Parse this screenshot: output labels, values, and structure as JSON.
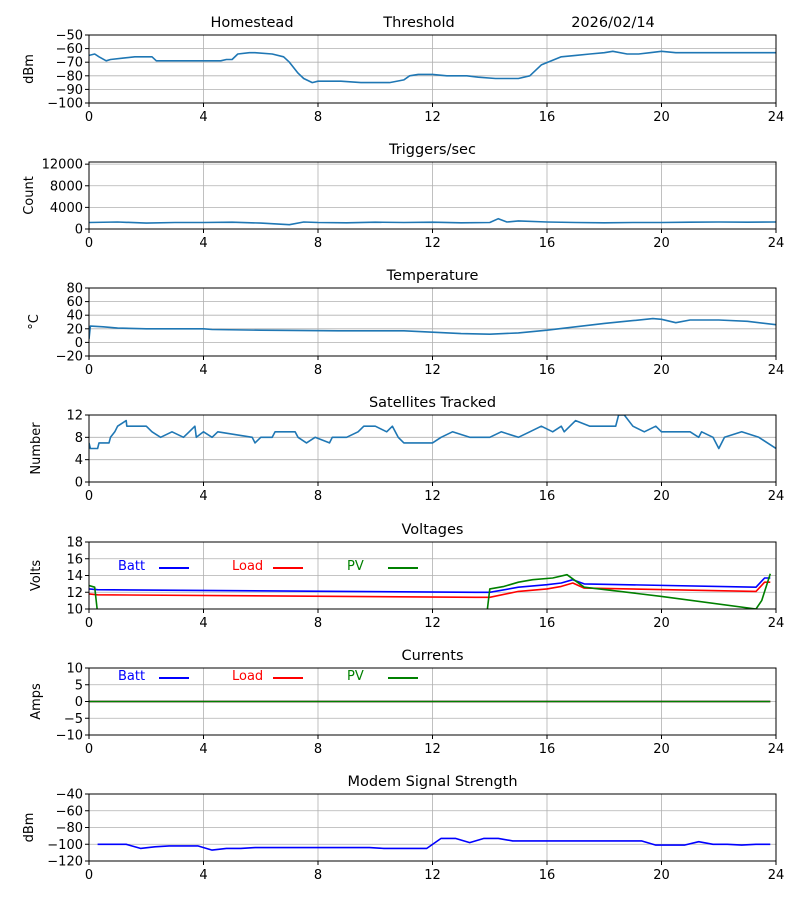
{
  "header": {
    "station": "Homestead",
    "mode": "Threshold",
    "date": "2026/02/14"
  },
  "colors": {
    "default_line": "#1f77b4",
    "batt": "#0000ff",
    "load": "#ff0000",
    "pv": "#008000",
    "grid": "#b0b0b0",
    "axis": "#000000"
  },
  "chart_data": [
    {
      "id": "signal",
      "type": "line",
      "title": "",
      "xlabel": "",
      "ylabel": "dBm",
      "xlim": [
        0,
        24
      ],
      "ylim": [
        -100,
        -50
      ],
      "xticks": [
        "0",
        "4",
        "8",
        "12",
        "16",
        "20",
        "24"
      ],
      "yticks": [
        "−50",
        "−60",
        "−70",
        "−80",
        "−90",
        "−100"
      ],
      "ytick_values": [
        -50,
        -60,
        -70,
        -80,
        -90,
        -100
      ],
      "grid": true,
      "series": [
        {
          "name": "signal",
          "color": "#1f77b4",
          "x": [
            0,
            0.2,
            0.35,
            0.6,
            0.75,
            1.2,
            1.6,
            2.2,
            2.35,
            4.0,
            4.6,
            4.8,
            5.0,
            5.2,
            5.6,
            5.8,
            6.4,
            6.8,
            7.0,
            7.3,
            7.5,
            7.8,
            8.0,
            8.8,
            9.5,
            10.5,
            11.0,
            11.2,
            11.5,
            12.0,
            12.5,
            13.2,
            13.6,
            14.2,
            14.6,
            15.0,
            15.4,
            15.8,
            16.5,
            17.0,
            17.5,
            18.0,
            18.3,
            18.8,
            19.2,
            19.6,
            20.0,
            20.5,
            21.0,
            22.0,
            23.0,
            24.0
          ],
          "y": [
            -65,
            -64,
            -66,
            -69,
            -68,
            -67,
            -66,
            -66,
            -69,
            -69,
            -69,
            -68,
            -68,
            -64,
            -63,
            -63,
            -64,
            -66,
            -70,
            -78,
            -82,
            -85,
            -84,
            -84,
            -85,
            -85,
            -83,
            -80,
            -79,
            -79,
            -80,
            -80,
            -81,
            -82,
            -82,
            -82,
            -80,
            -72,
            -66,
            -65,
            -64,
            -63,
            -62,
            -64,
            -64,
            -63,
            -62,
            -63,
            -63,
            -63,
            -63,
            -63
          ]
        }
      ]
    },
    {
      "id": "triggers",
      "type": "line",
      "title": "Triggers/sec",
      "xlabel": "",
      "ylabel": "Count",
      "xlim": [
        0,
        24
      ],
      "ylim": [
        0,
        12400
      ],
      "xticks": [
        "0",
        "4",
        "8",
        "12",
        "16",
        "20",
        "24"
      ],
      "yticks": [
        "0",
        "4000",
        "8000",
        "12000"
      ],
      "ytick_values": [
        0,
        4000,
        8000,
        12000
      ],
      "grid": true,
      "series": [
        {
          "name": "triggers",
          "color": "#1f77b4",
          "x": [
            0,
            1,
            2,
            3,
            4,
            5,
            6,
            7,
            7.5,
            8,
            9,
            10,
            11,
            12,
            13,
            14,
            14.3,
            14.6,
            15,
            16,
            17,
            18,
            19,
            20,
            21,
            22,
            23,
            24
          ],
          "y": [
            1200,
            1300,
            1100,
            1200,
            1200,
            1250,
            1100,
            800,
            1300,
            1200,
            1150,
            1250,
            1200,
            1250,
            1150,
            1200,
            1900,
            1300,
            1500,
            1300,
            1200,
            1150,
            1200,
            1200,
            1250,
            1300,
            1250,
            1300
          ]
        }
      ]
    },
    {
      "id": "temperature",
      "type": "line",
      "title": "Temperature",
      "xlabel": "",
      "ylabel": "°C",
      "xlim": [
        0,
        24
      ],
      "ylim": [
        -20,
        80
      ],
      "xticks": [
        "0",
        "4",
        "8",
        "12",
        "16",
        "20",
        "24"
      ],
      "yticks": [
        "80",
        "60",
        "40",
        "20",
        "0",
        "−20"
      ],
      "ytick_values": [
        80,
        60,
        40,
        20,
        0,
        -20
      ],
      "grid": true,
      "series": [
        {
          "name": "temperature",
          "color": "#1f77b4",
          "x": [
            0,
            0.05,
            0.5,
            1,
            2,
            4,
            4.3,
            6,
            8.7,
            11,
            12,
            13,
            14,
            15,
            16,
            17,
            18,
            19,
            19.7,
            20.0,
            20.5,
            21,
            22,
            23,
            24
          ],
          "y": [
            5,
            24,
            23,
            21,
            20,
            20,
            19,
            18,
            17,
            17,
            15,
            13,
            12,
            14,
            18,
            23,
            28,
            32,
            35,
            34,
            29,
            33,
            33,
            31,
            26
          ]
        }
      ]
    },
    {
      "id": "satellites",
      "type": "line",
      "title": "Satellites Tracked",
      "xlabel": "",
      "ylabel": "Number",
      "xlim": [
        0,
        24
      ],
      "ylim": [
        0,
        12
      ],
      "xticks": [
        "0",
        "4",
        "8",
        "12",
        "16",
        "20",
        "24"
      ],
      "yticks": [
        "12",
        "8",
        "4",
        "0"
      ],
      "ytick_values": [
        12,
        8,
        4,
        0
      ],
      "grid": true,
      "series": [
        {
          "name": "satellites",
          "color": "#1f77b4",
          "x": [
            0,
            0.05,
            0.3,
            0.35,
            0.7,
            0.75,
            0.9,
            1.0,
            1.3,
            1.32,
            2.0,
            2.2,
            2.5,
            2.9,
            3.3,
            3.5,
            3.7,
            3.75,
            4.0,
            4.3,
            4.5,
            5.7,
            5.8,
            6.0,
            6.4,
            6.5,
            7.2,
            7.3,
            7.6,
            7.9,
            8.4,
            8.5,
            9.0,
            9.4,
            9.6,
            10.0,
            10.4,
            10.6,
            10.8,
            11.0,
            12.0,
            12.3,
            12.7,
            13.3,
            14.0,
            14.4,
            15.0,
            15.4,
            15.8,
            16.2,
            16.5,
            16.6,
            17.0,
            17.5,
            18.4,
            18.5,
            18.7,
            19.0,
            19.4,
            19.8,
            20.0,
            21.0,
            21.3,
            21.4,
            21.8,
            22.0,
            22.2,
            22.8,
            23.4,
            24.0
          ],
          "y": [
            7,
            6,
            6,
            7,
            7,
            8,
            9,
            10,
            11,
            10,
            10,
            9,
            8,
            9,
            8,
            9,
            10,
            8,
            9,
            8,
            9,
            8,
            7,
            8,
            8,
            9,
            9,
            8,
            7,
            8,
            7,
            8,
            8,
            9,
            10,
            10,
            9,
            10,
            8,
            7,
            7,
            8,
            9,
            8,
            8,
            9,
            8,
            9,
            10,
            9,
            10,
            9,
            11,
            10,
            10,
            12,
            12,
            10,
            9,
            10,
            9,
            9,
            8,
            9,
            8,
            6,
            8,
            9,
            8,
            6
          ]
        }
      ]
    },
    {
      "id": "voltages",
      "type": "line",
      "title": "Voltages",
      "xlabel": "",
      "ylabel": "Volts",
      "xlim": [
        0,
        24
      ],
      "ylim": [
        10,
        18
      ],
      "xticks": [
        "0",
        "4",
        "8",
        "12",
        "16",
        "20",
        "24"
      ],
      "yticks": [
        "18",
        "16",
        "14",
        "12",
        "10"
      ],
      "ytick_values": [
        18,
        16,
        14,
        12,
        10
      ],
      "grid": true,
      "legend": {
        "placement": "top-left-inline",
        "entries": [
          "Batt",
          "Load",
          "PV"
        ]
      },
      "series": [
        {
          "name": "Batt",
          "color": "#0000ff",
          "x": [
            0,
            0.3,
            13.5,
            14.0,
            15.0,
            16.0,
            16.5,
            16.9,
            17.3,
            23.3,
            23.6,
            23.8
          ],
          "y": [
            12.4,
            12.3,
            12.0,
            12.0,
            12.6,
            12.9,
            13.1,
            13.5,
            13.0,
            12.6,
            13.7,
            13.7
          ]
        },
        {
          "name": "Load",
          "color": "#ff0000",
          "x": [
            0,
            0.3,
            13.5,
            14.0,
            15.0,
            16.0,
            16.5,
            16.9,
            17.3,
            23.3,
            23.6,
            23.8
          ],
          "y": [
            11.8,
            11.7,
            11.4,
            11.4,
            12.1,
            12.4,
            12.7,
            13.1,
            12.5,
            12.1,
            13.2,
            13.2
          ]
        },
        {
          "name": "PV",
          "color": "#008000",
          "x": [
            0,
            0.2,
            0.3,
            13.9,
            14.0,
            14.5,
            15.0,
            15.5,
            16.2,
            16.7,
            17.3,
            20.0,
            23.3,
            23.5,
            23.8
          ],
          "y": [
            12.8,
            12.6,
            9.5,
            9.5,
            12.4,
            12.7,
            13.2,
            13.5,
            13.7,
            14.1,
            12.6,
            11.5,
            10.0,
            11.0,
            14.2
          ]
        }
      ]
    },
    {
      "id": "currents",
      "type": "line",
      "title": "Currents",
      "xlabel": "",
      "ylabel": "Amps",
      "xlim": [
        0,
        24
      ],
      "ylim": [
        -10,
        10
      ],
      "xticks": [
        "0",
        "4",
        "8",
        "12",
        "16",
        "20",
        "24"
      ],
      "yticks": [
        "10",
        "5",
        "0",
        "−5",
        "−10"
      ],
      "ytick_values": [
        10,
        5,
        0,
        -5,
        -10
      ],
      "grid": true,
      "legend": {
        "placement": "top-left-inline",
        "entries": [
          "Batt",
          "Load",
          "PV"
        ]
      },
      "series": [
        {
          "name": "Batt",
          "color": "#0000ff",
          "x": [
            0,
            23.8
          ],
          "y": [
            0,
            0
          ]
        },
        {
          "name": "Load",
          "color": "#ff0000",
          "x": [
            0,
            23.8
          ],
          "y": [
            0,
            0
          ]
        },
        {
          "name": "PV",
          "color": "#008000",
          "x": [
            0,
            23.8
          ],
          "y": [
            0,
            0
          ]
        }
      ]
    },
    {
      "id": "modem",
      "type": "line",
      "title": "Modem Signal Strength",
      "xlabel": "",
      "ylabel": "dBm",
      "xlim": [
        0,
        24
      ],
      "ylim": [
        -120,
        -40
      ],
      "xticks": [
        "0",
        "4",
        "8",
        "12",
        "16",
        "20",
        "24"
      ],
      "yticks": [
        "−40",
        "−60",
        "−80",
        "−100",
        "−120"
      ],
      "ytick_values": [
        -40,
        -60,
        -80,
        -100,
        -120
      ],
      "grid": true,
      "series": [
        {
          "name": "modem",
          "color": "#0000ff",
          "x": [
            0.3,
            1.3,
            1.8,
            2.3,
            2.8,
            3.8,
            4.3,
            4.8,
            5.3,
            5.8,
            8.8,
            9.8,
            10.3,
            10.8,
            11.3,
            11.8,
            12.3,
            12.8,
            13.3,
            13.8,
            14.3,
            14.8,
            19.3,
            19.8,
            20.8,
            21.3,
            21.8,
            22.3,
            22.8,
            23.3,
            23.8
          ],
          "y": [
            -100,
            -100,
            -105,
            -103,
            -102,
            -102,
            -107,
            -105,
            -105,
            -104,
            -104,
            -104,
            -105,
            -105,
            -105,
            -105,
            -93,
            -93,
            -98,
            -93,
            -93,
            -96,
            -96,
            -101,
            -101,
            -97,
            -100,
            -100,
            -101,
            -100,
            -100
          ]
        }
      ]
    }
  ]
}
